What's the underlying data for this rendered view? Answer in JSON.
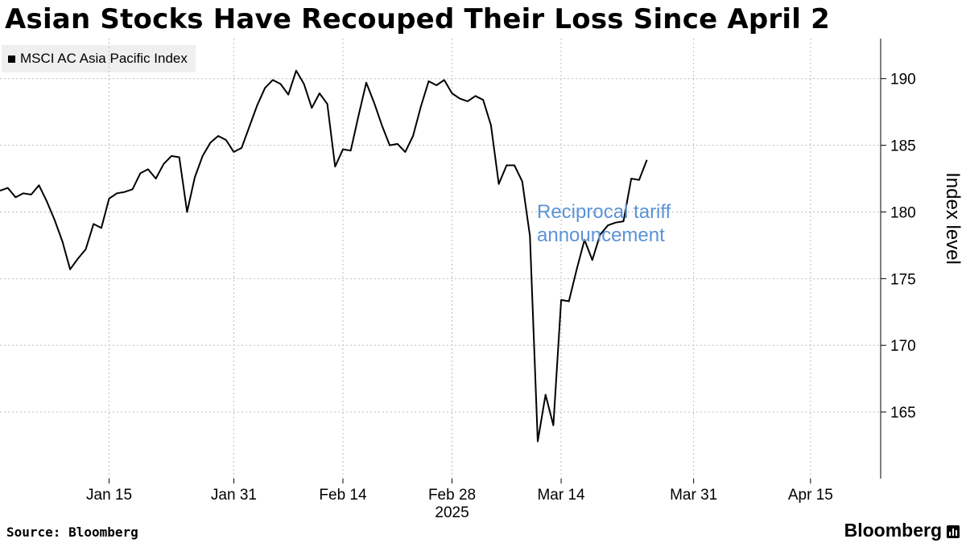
{
  "title": "Asian Stocks Have Recouped Their Loss Since April 2",
  "source": "Source: Bloomberg",
  "brand": "Bloomberg",
  "colors": {
    "line": "#000000",
    "annotation": "#5b93d6",
    "grid": "#bbbbbb",
    "legend_bg": "#efefef"
  },
  "chart_data": {
    "type": "line",
    "title": "Asian Stocks Have Recouped Their Loss Since April 2",
    "xlabel": "2025",
    "ylabel": "Index level",
    "ylim": [
      160,
      193
    ],
    "xlim": [
      "2025-01-01",
      "2025-04-24"
    ],
    "yticks": [
      165,
      170,
      175,
      180,
      185,
      190
    ],
    "xticks": [
      {
        "date": "2025-01-15",
        "label": "Jan 15"
      },
      {
        "date": "2025-01-31",
        "label": "Jan 31"
      },
      {
        "date": "2025-02-14",
        "label": "Feb 14"
      },
      {
        "date": "2025-02-28",
        "label": "Feb 28"
      },
      {
        "date": "2025-03-14",
        "label": "Mar 14"
      },
      {
        "date": "2025-03-31",
        "label": "Mar 31"
      },
      {
        "date": "2025-04-15",
        "label": "Apr 15"
      }
    ],
    "grid": true,
    "legend_position": "top-left",
    "series": [
      {
        "name": "MSCI AC Asia Pacific Index",
        "color": "#000000",
        "points": [
          [
            "2025-01-01",
            181.6
          ],
          [
            "2025-01-02",
            181.8
          ],
          [
            "2025-01-03",
            181.1
          ],
          [
            "2025-01-04",
            181.4
          ],
          [
            "2025-01-05",
            181.3
          ],
          [
            "2025-01-06",
            182.0
          ],
          [
            "2025-01-07",
            180.8
          ],
          [
            "2025-01-08",
            179.4
          ],
          [
            "2025-01-09",
            177.8
          ],
          [
            "2025-01-10",
            175.7
          ],
          [
            "2025-01-11",
            176.5
          ],
          [
            "2025-01-12",
            177.2
          ],
          [
            "2025-01-13",
            179.1
          ],
          [
            "2025-01-14",
            178.8
          ],
          [
            "2025-01-15",
            181.0
          ],
          [
            "2025-01-16",
            181.4
          ],
          [
            "2025-01-17",
            181.5
          ],
          [
            "2025-01-18",
            181.7
          ],
          [
            "2025-01-19",
            182.9
          ],
          [
            "2025-01-20",
            183.2
          ],
          [
            "2025-01-21",
            182.5
          ],
          [
            "2025-01-22",
            183.6
          ],
          [
            "2025-01-23",
            184.2
          ],
          [
            "2025-01-24",
            184.1
          ],
          [
            "2025-01-25",
            180.0
          ],
          [
            "2025-01-26",
            182.6
          ],
          [
            "2025-01-27",
            184.2
          ],
          [
            "2025-01-28",
            185.2
          ],
          [
            "2025-01-29",
            185.7
          ],
          [
            "2025-01-30",
            185.4
          ],
          [
            "2025-01-31",
            184.5
          ],
          [
            "2025-02-01",
            184.8
          ],
          [
            "2025-02-02",
            186.4
          ],
          [
            "2025-02-03",
            188.0
          ],
          [
            "2025-02-04",
            189.3
          ],
          [
            "2025-02-05",
            189.9
          ],
          [
            "2025-02-06",
            189.6
          ],
          [
            "2025-02-07",
            188.8
          ],
          [
            "2025-02-08",
            190.6
          ],
          [
            "2025-02-09",
            189.6
          ],
          [
            "2025-02-10",
            187.8
          ],
          [
            "2025-02-11",
            188.9
          ],
          [
            "2025-02-12",
            188.1
          ],
          [
            "2025-02-13",
            183.4
          ],
          [
            "2025-02-14",
            184.7
          ],
          [
            "2025-02-15",
            184.6
          ],
          [
            "2025-02-16",
            187.2
          ],
          [
            "2025-02-17",
            189.7
          ],
          [
            "2025-02-18",
            188.2
          ],
          [
            "2025-02-19",
            186.5
          ],
          [
            "2025-02-20",
            185.0
          ],
          [
            "2025-02-21",
            185.1
          ],
          [
            "2025-02-22",
            184.5
          ],
          [
            "2025-02-23",
            185.7
          ],
          [
            "2025-02-24",
            187.9
          ],
          [
            "2025-02-25",
            189.8
          ],
          [
            "2025-02-26",
            189.5
          ],
          [
            "2025-02-27",
            189.9
          ],
          [
            "2025-02-28",
            188.9
          ],
          [
            "2025-03-01",
            188.5
          ],
          [
            "2025-03-02",
            188.3
          ],
          [
            "2025-03-03",
            188.7
          ],
          [
            "2025-03-04",
            188.4
          ],
          [
            "2025-03-05",
            186.5
          ],
          [
            "2025-03-06",
            182.1
          ],
          [
            "2025-03-07",
            183.5
          ],
          [
            "2025-03-08",
            183.5
          ],
          [
            "2025-03-09",
            182.3
          ],
          [
            "2025-03-10",
            178.2
          ],
          [
            "2025-03-11",
            162.8
          ],
          [
            "2025-03-12",
            166.3
          ],
          [
            "2025-03-13",
            164.0
          ],
          [
            "2025-03-14",
            173.4
          ],
          [
            "2025-03-15",
            173.3
          ],
          [
            "2025-03-16",
            175.7
          ],
          [
            "2025-03-17",
            177.9
          ],
          [
            "2025-03-18",
            176.4
          ],
          [
            "2025-03-19",
            178.3
          ],
          [
            "2025-03-20",
            179.0
          ],
          [
            "2025-03-21",
            179.2
          ],
          [
            "2025-03-22",
            179.3
          ],
          [
            "2025-03-23",
            182.5
          ],
          [
            "2025-03-24",
            182.4
          ],
          [
            "2025-03-25",
            183.9
          ]
        ]
      }
    ],
    "annotations": [
      {
        "text_lines": [
          "Reciprocal tariff",
          "announcement"
        ],
        "date": "2025-04-02"
      }
    ]
  }
}
